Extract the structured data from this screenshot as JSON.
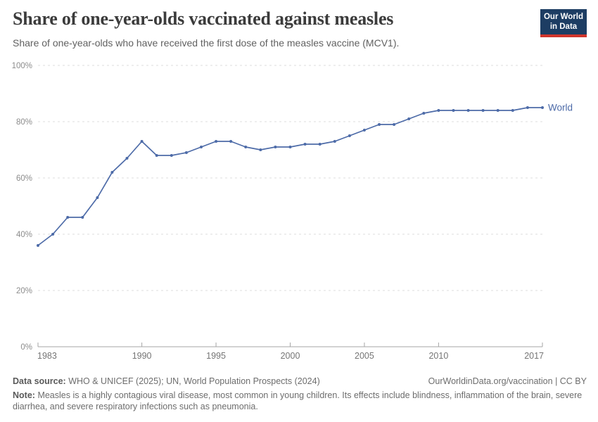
{
  "header": {
    "title": "Share of one-year-olds vaccinated against measles",
    "subtitle": "Share of one-year-olds who have received the first dose of the measles vaccine (MCV1).",
    "logo_line1": "Our World",
    "logo_line2": "in Data"
  },
  "chart_data": {
    "type": "line",
    "title": "Share of one-year-olds vaccinated against measles",
    "subtitle": "Share of one-year-olds who have received the first dose of the measles vaccine (MCV1).",
    "xlabel": "",
    "ylabel": "",
    "xlim": [
      1983,
      2017
    ],
    "ylim": [
      0,
      100
    ],
    "grid": "horizontal-dashed",
    "legend_position": "line-end-label",
    "x_ticks": [
      1983,
      1990,
      1995,
      2000,
      2005,
      2010,
      2017
    ],
    "y_ticks": [
      {
        "value": 0,
        "label": "0%"
      },
      {
        "value": 20,
        "label": "20%"
      },
      {
        "value": 40,
        "label": "40%"
      },
      {
        "value": 60,
        "label": "60%"
      },
      {
        "value": 80,
        "label": "80%"
      },
      {
        "value": 100,
        "label": "100%"
      }
    ],
    "series": [
      {
        "name": "World",
        "color": "#4d6ba8",
        "years": [
          1983,
          1984,
          1985,
          1986,
          1987,
          1988,
          1989,
          1990,
          1991,
          1992,
          1993,
          1994,
          1995,
          1996,
          1997,
          1998,
          1999,
          2000,
          2001,
          2002,
          2003,
          2004,
          2005,
          2006,
          2007,
          2008,
          2009,
          2010,
          2011,
          2012,
          2013,
          2014,
          2015,
          2016,
          2017
        ],
        "values": [
          36,
          40,
          46,
          46,
          53,
          62,
          67,
          73,
          68,
          68,
          69,
          71,
          73,
          73,
          71,
          70,
          71,
          71,
          72,
          72,
          73,
          75,
          77,
          79,
          79,
          81,
          83,
          84,
          84,
          84,
          84,
          84,
          84,
          85,
          85
        ]
      }
    ]
  },
  "footer": {
    "datasource_label": "Data source:",
    "datasource_text": "WHO & UNICEF (2025); UN, World Population Prospects (2024)",
    "link": "OurWorldinData.org/vaccination | CC BY",
    "note_label": "Note:",
    "note_text": "Measles is a highly contagious viral disease, most common in young children. Its effects include blindness, inflammation of the brain, severe diarrhea, and severe respiratory infections such as pneumonia."
  },
  "colors": {
    "line": "#4d6ba8",
    "gridline": "#dcdcdc",
    "axis": "#a6a6a6",
    "y_tick_label": "#8c8c8c",
    "x_tick_label": "#757575",
    "logo_bg": "#1d3d63",
    "logo_red": "#d0352c",
    "title_text": "#3b3b3b"
  }
}
